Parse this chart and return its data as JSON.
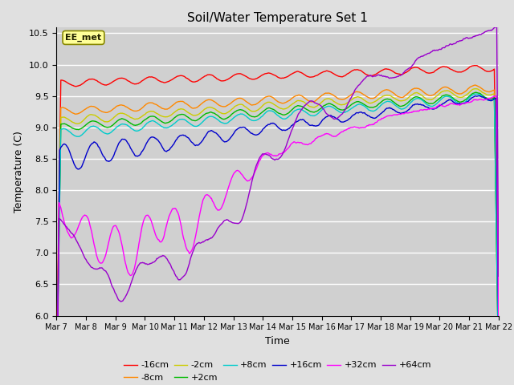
{
  "title": "Soil/Water Temperature Set 1",
  "xlabel": "Time",
  "ylabel": "Temperature (C)",
  "ylim": [
    6.0,
    10.6
  ],
  "annotation": "EE_met",
  "series": [
    {
      "label": "-16cm",
      "color": "#ff0000"
    },
    {
      "label": "-8cm",
      "color": "#ff8800"
    },
    {
      "label": "-2cm",
      "color": "#cccc00"
    },
    {
      "label": "+2cm",
      "color": "#00bb00"
    },
    {
      "label": "+8cm",
      "color": "#00cccc"
    },
    {
      "label": "+16cm",
      "color": "#0000cc"
    },
    {
      "label": "+32cm",
      "color": "#ff00ff"
    },
    {
      "label": "+64cm",
      "color": "#9900cc"
    }
  ],
  "xtick_labels": [
    "Mar 7",
    "Mar 8",
    "Mar 9",
    "Mar 10",
    "Mar 11",
    "Mar 12",
    "Mar 13",
    "Mar 14",
    "Mar 15",
    "Mar 16",
    "Mar 17",
    "Mar 18",
    "Mar 19",
    "Mar 20",
    "Mar 21",
    "Mar 22"
  ],
  "ytick_values": [
    6.0,
    6.5,
    7.0,
    7.5,
    8.0,
    8.5,
    9.0,
    9.5,
    10.0,
    10.5
  ]
}
